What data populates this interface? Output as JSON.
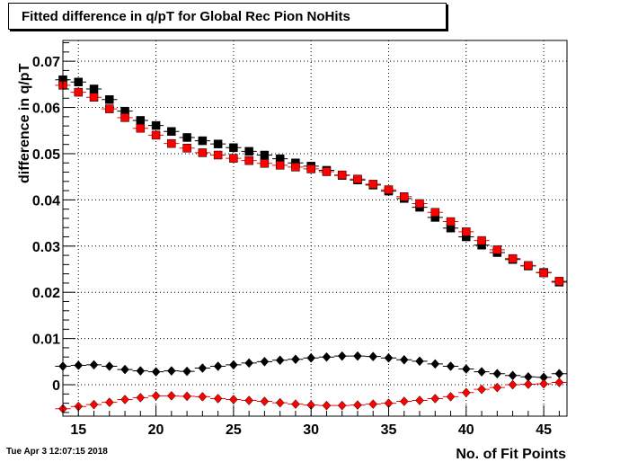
{
  "timestamp": "Tue Apr  3 12:07:15 2018",
  "chart_data": {
    "type": "scatter",
    "title": "Fitted difference in q/pT for Global Rec Pion NoHits",
    "xlabel": "No. of Fit Points",
    "ylabel": "difference in q/pT",
    "xlim": [
      14,
      46.5
    ],
    "ylim": [
      -0.0068,
      0.0745
    ],
    "x_ticks": [
      {
        "value": 15,
        "label": "15"
      },
      {
        "value": 20,
        "label": "20"
      },
      {
        "value": 25,
        "label": "25"
      },
      {
        "value": 30,
        "label": "30"
      },
      {
        "value": 35,
        "label": "35"
      },
      {
        "value": 40,
        "label": "40"
      },
      {
        "value": 45,
        "label": "45"
      }
    ],
    "y_ticks": [
      {
        "value": 0,
        "label": "0"
      },
      {
        "value": 0.01,
        "label": "0.01"
      },
      {
        "value": 0.02,
        "label": "0.02"
      },
      {
        "value": 0.03,
        "label": "0.03"
      },
      {
        "value": 0.04,
        "label": "0.04"
      },
      {
        "value": 0.05,
        "label": "0.05"
      },
      {
        "value": 0.06,
        "label": "0.06"
      },
      {
        "value": 0.07,
        "label": "0.07"
      }
    ],
    "grid": true,
    "x": [
      14,
      15,
      16,
      17,
      18,
      19,
      20,
      21,
      22,
      23,
      24,
      25,
      26,
      27,
      28,
      29,
      30,
      31,
      32,
      33,
      34,
      35,
      36,
      37,
      38,
      39,
      40,
      41,
      42,
      43,
      44,
      45,
      46
    ],
    "series": [
      {
        "color": "#000000",
        "marker": "square",
        "values": [
          0.066,
          0.0655,
          0.064,
          0.0617,
          0.0592,
          0.0572,
          0.0561,
          0.0548,
          0.0535,
          0.0528,
          0.0521,
          0.0513,
          0.0505,
          0.0497,
          0.0489,
          0.048,
          0.0473,
          0.0464,
          0.0453,
          0.0443,
          0.0432,
          0.0419,
          0.0403,
          0.0384,
          0.0362,
          0.0339,
          0.032,
          0.0302,
          0.0286,
          0.0271,
          0.0257,
          0.0243,
          0.0222
        ]
      },
      {
        "color": "#ff0000",
        "marker": "square",
        "values": [
          0.0648,
          0.0633,
          0.0622,
          0.0597,
          0.0578,
          0.0555,
          0.054,
          0.0522,
          0.0512,
          0.0502,
          0.0497,
          0.049,
          0.0485,
          0.0479,
          0.0475,
          0.0471,
          0.0467,
          0.0461,
          0.0454,
          0.0445,
          0.0434,
          0.0422,
          0.0407,
          0.0392,
          0.0373,
          0.0353,
          0.0331,
          0.0312,
          0.0292,
          0.0273,
          0.0258,
          0.0242,
          0.0224
        ]
      },
      {
        "color": "#000000",
        "marker": "diamond",
        "values": [
          0.004,
          0.0042,
          0.0043,
          0.004,
          0.0033,
          0.003,
          0.0028,
          0.003,
          0.0029,
          0.0036,
          0.004,
          0.0043,
          0.0047,
          0.005,
          0.0053,
          0.0055,
          0.0058,
          0.006,
          0.0062,
          0.0062,
          0.0061,
          0.0058,
          0.0054,
          0.0051,
          0.0045,
          0.004,
          0.0034,
          0.0028,
          0.0024,
          0.002,
          0.0017,
          0.0016,
          0.0024
        ]
      },
      {
        "color": "#ff0000",
        "marker": "diamond",
        "values": [
          -0.0052,
          -0.0047,
          -0.0043,
          -0.0038,
          -0.0032,
          -0.0028,
          -0.0024,
          -0.0024,
          -0.0025,
          -0.0026,
          -0.003,
          -0.0032,
          -0.0034,
          -0.0036,
          -0.0039,
          -0.0042,
          -0.0044,
          -0.0045,
          -0.0045,
          -0.0044,
          -0.0042,
          -0.004,
          -0.0036,
          -0.0034,
          -0.003,
          -0.0026,
          -0.0017,
          -0.001,
          -0.0006,
          0.0,
          0.0001,
          0.0002,
          0.0005
        ]
      }
    ]
  }
}
